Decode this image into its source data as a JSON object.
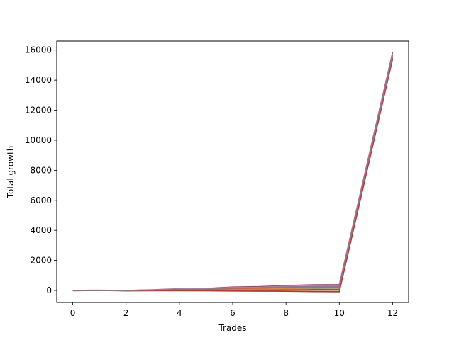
{
  "chart_data": {
    "type": "line",
    "title": "",
    "xlabel": "Trades",
    "ylabel": "Total growth",
    "xlim": [
      -0.6,
      12.6
    ],
    "ylim": [
      -800,
      16600
    ],
    "xticks": [
      0,
      2,
      4,
      6,
      8,
      10,
      12
    ],
    "yticks": [
      0,
      2000,
      4000,
      6000,
      8000,
      10000,
      12000,
      14000,
      16000
    ],
    "grid": false,
    "legend": "none",
    "x": [
      0,
      1,
      2,
      3,
      4,
      5,
      6,
      7,
      8,
      9,
      10,
      12
    ],
    "series": [
      {
        "color": "#1f77b4",
        "values": [
          0,
          10,
          -20,
          0,
          20,
          30,
          40,
          40,
          50,
          60,
          60,
          15500
        ]
      },
      {
        "color": "#ff7f0e",
        "values": [
          0,
          15,
          -10,
          10,
          40,
          50,
          80,
          90,
          110,
          130,
          140,
          15550
        ]
      },
      {
        "color": "#2ca02c",
        "values": [
          -10,
          5,
          -15,
          -10,
          -20,
          -15,
          -30,
          -20,
          -40,
          -50,
          -60,
          15450
        ]
      },
      {
        "color": "#d62728",
        "values": [
          -20,
          0,
          -30,
          -20,
          -10,
          -20,
          -40,
          -50,
          -60,
          -80,
          -90,
          15400
        ]
      },
      {
        "color": "#9467bd",
        "values": [
          0,
          10,
          0,
          30,
          60,
          80,
          120,
          150,
          180,
          200,
          200,
          15600
        ]
      },
      {
        "color": "#8c564b",
        "values": [
          10,
          20,
          0,
          50,
          120,
          140,
          230,
          260,
          330,
          380,
          390,
          15850
        ]
      },
      {
        "color": "#e377c2",
        "values": [
          5,
          10,
          -5,
          40,
          100,
          120,
          190,
          210,
          270,
          300,
          310,
          15750
        ]
      },
      {
        "color": "#7f7f7f",
        "values": [
          0,
          5,
          -10,
          20,
          70,
          90,
          160,
          180,
          240,
          260,
          270,
          15700
        ]
      }
    ]
  }
}
